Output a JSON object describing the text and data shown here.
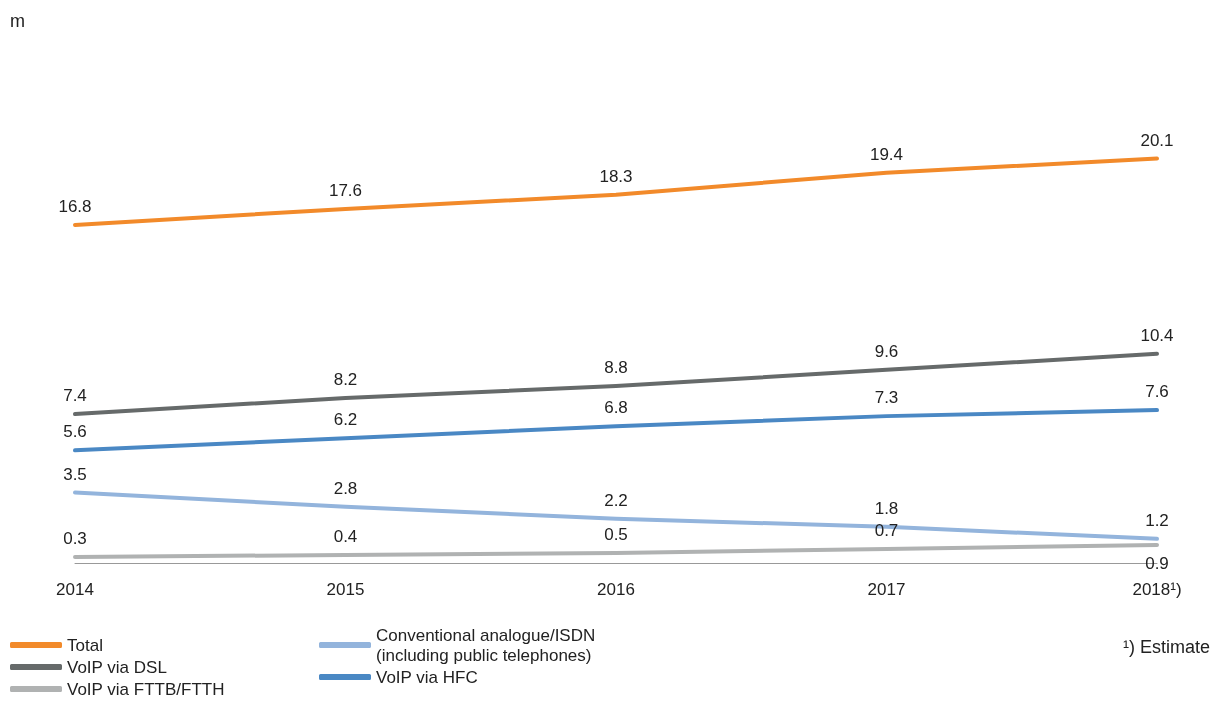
{
  "chart_data": {
    "type": "line",
    "categories": [
      "2014",
      "2015",
      "2016",
      "2017",
      "2018¹)"
    ],
    "series": [
      {
        "name": "Total",
        "color": "#f28a2a",
        "values": [
          16.8,
          17.6,
          18.3,
          19.4,
          20.1
        ]
      },
      {
        "name": "VoIP via DSL",
        "color": "#666a6a",
        "values": [
          7.4,
          8.2,
          8.8,
          9.6,
          10.4
        ]
      },
      {
        "name": "VoIP via FTTB/FTTH",
        "color": "#b0b2b2",
        "values": [
          0.3,
          0.4,
          0.5,
          0.7,
          0.9
        ]
      },
      {
        "name": "Conventional analogue/ISDN (including public telephones)",
        "color": "#93b4dc",
        "values": [
          3.5,
          2.8,
          2.2,
          1.8,
          1.2
        ]
      },
      {
        "name": "VoIP via HFC",
        "color": "#4a88c4",
        "values": [
          5.6,
          6.2,
          6.8,
          7.3,
          7.6
        ]
      }
    ],
    "data_labels": true,
    "legend": "bottom left",
    "grid": false,
    "marker": "none",
    "line_style": "solid",
    "annotations": [
      "m",
      "¹) Estimate"
    ]
  }
}
